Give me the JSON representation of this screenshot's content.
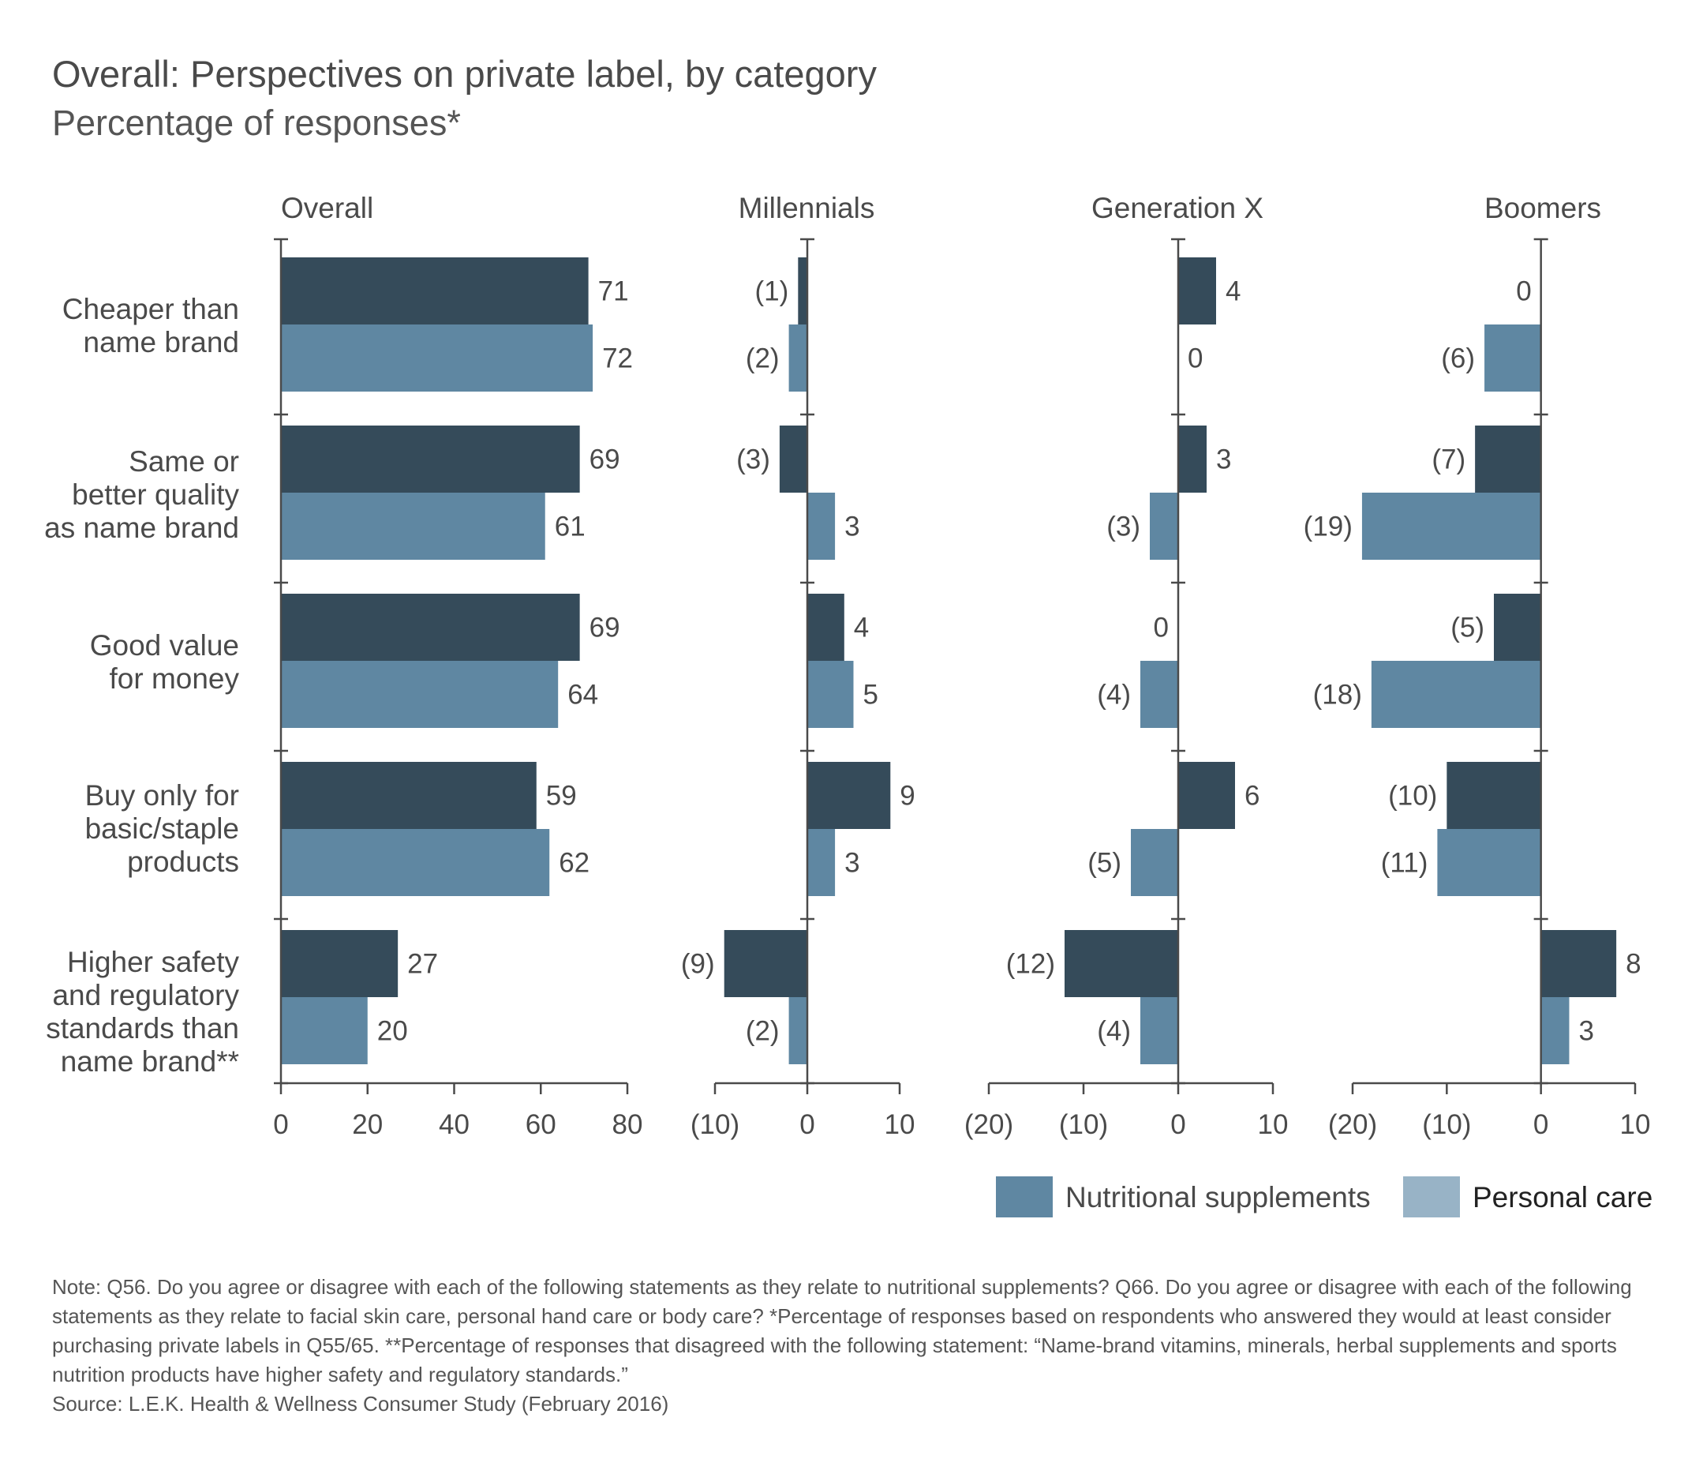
{
  "title": "Overall: Perspectives on private label, by category",
  "subtitle": "Percentage of responses*",
  "chart_data": {
    "type": "bar",
    "orientation": "horizontal",
    "categories": [
      "Cheaper than name brand",
      "Same or better quality as name brand",
      "Good value for money",
      "Buy only for basic/staple products",
      "Higher safety and regulatory standards than name brand**"
    ],
    "category_lines": [
      [
        "Cheaper than",
        "name brand"
      ],
      [
        "Same or",
        "better quality",
        "as name brand"
      ],
      [
        "Good value",
        "for money"
      ],
      [
        "Buy only for",
        "basic/staple",
        "products"
      ],
      [
        "Higher safety",
        "and regulatory",
        "standards than",
        "name brand**"
      ]
    ],
    "legend": [
      {
        "name": "Nutritional supplements",
        "color": "#5f87a2"
      },
      {
        "name": "Personal care",
        "color": "#98b3c6"
      }
    ],
    "legend_position": "bottom-right",
    "bar_colors": {
      "nutritional_supplements": "#354b5a",
      "personal_care": "#5f87a2"
    },
    "value_format": "negative values shown in parentheses",
    "panels": [
      {
        "title": "Overall",
        "xlim": [
          0,
          80
        ],
        "ticks": [
          0,
          20,
          40,
          60,
          80
        ],
        "tick_labels": [
          "0",
          "20",
          "40",
          "60",
          "80"
        ],
        "series": [
          {
            "name": "Nutritional supplements",
            "values": [
              71,
              69,
              69,
              59,
              27
            ],
            "labels": [
              "71",
              "69",
              "69",
              "59",
              "27"
            ]
          },
          {
            "name": "Personal care",
            "values": [
              72,
              61,
              64,
              62,
              20
            ],
            "labels": [
              "72",
              "61",
              "64",
              "62",
              "20"
            ]
          }
        ]
      },
      {
        "title": "Millennials",
        "xlim": [
          -10,
          10
        ],
        "ticks": [
          -10,
          0,
          10
        ],
        "tick_labels": [
          "(10)",
          "0",
          "10"
        ],
        "series": [
          {
            "name": "Nutritional supplements",
            "values": [
              -1,
              -3,
              4,
              9,
              -9
            ],
            "labels": [
              "(1)",
              "(3)",
              "4",
              "9",
              "(9)"
            ]
          },
          {
            "name": "Personal care",
            "values": [
              -2,
              3,
              5,
              3,
              -2
            ],
            "labels": [
              "(2)",
              "3",
              "5",
              "3",
              "(2)"
            ]
          }
        ]
      },
      {
        "title": "Generation X",
        "xlim": [
          -20,
          10
        ],
        "ticks": [
          -20,
          -10,
          0,
          10
        ],
        "tick_labels": [
          "(20)",
          "(10)",
          "0",
          "10"
        ],
        "series": [
          {
            "name": "Nutritional supplements",
            "values": [
              4,
              3,
              0,
              6,
              -12
            ],
            "labels": [
              "4",
              "3",
              "0",
              "6",
              "(12)"
            ]
          },
          {
            "name": "Personal care",
            "values": [
              0,
              -3,
              -4,
              -5,
              -4
            ],
            "labels": [
              "0",
              "(3)",
              "(4)",
              "(5)",
              "(4)"
            ]
          }
        ]
      },
      {
        "title": "Boomers",
        "xlim": [
          -20,
          10
        ],
        "ticks": [
          -20,
          -10,
          0,
          10
        ],
        "tick_labels": [
          "(20)",
          "(10)",
          "0",
          "10"
        ],
        "series": [
          {
            "name": "Nutritional supplements",
            "values": [
              0,
              -7,
              -5,
              -10,
              8
            ],
            "labels": [
              "0",
              "(7)",
              "(5)",
              "(10)",
              "8"
            ]
          },
          {
            "name": "Personal care",
            "values": [
              -6,
              -19,
              -18,
              -11,
              3
            ],
            "labels": [
              "(6)",
              "(19)",
              "(18)",
              "(11)",
              "3"
            ]
          }
        ]
      }
    ]
  },
  "notes": {
    "note": "Note: Q56. Do you agree or disagree with each of the following statements as they relate to nutritional supplements? Q66. Do you agree or disagree with each of the following statements as they relate to facial skin care, personal hand care or body care? *Percentage of responses based on respondents who answered they would at least consider purchasing private labels in Q55/65. **Percentage of responses that disagreed with the following statement: “Name-brand vitamins, minerals, herbal supplements and sports nutrition products have higher safety and regulatory standards.”",
    "source": "Source: L.E.K. Health & Wellness Consumer Study (February 2016)"
  }
}
